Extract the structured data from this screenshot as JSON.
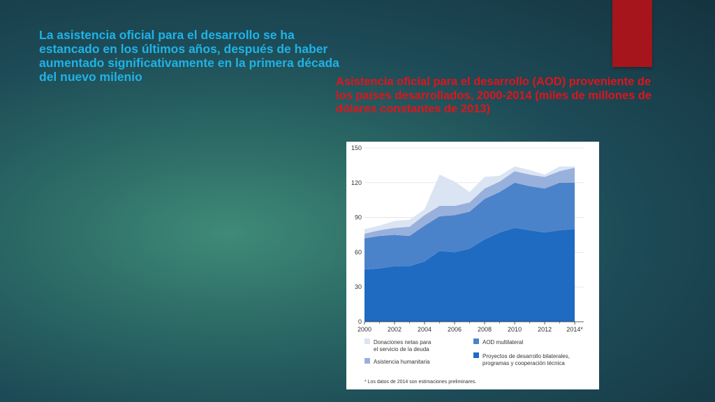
{
  "slide": {
    "title": "La asistencia oficial para el desarrollo se ha estancado en los últimos años, después de haber aumentado significativamente en la primera década del nuevo milenio",
    "chart_caption_lines": [
      "Asistencia oficial para el desarrollo (AOD) proveniente de",
      "los países desarrollados, 2000-2014 (miles de millones de dólares constantes de 2013)"
    ],
    "accent_color": "#a5151b",
    "title_color": "#1fb3e6",
    "caption_color": "#e0141c"
  },
  "chart_data": {
    "type": "area",
    "stacked": true,
    "x": [
      2000,
      2001,
      2002,
      2003,
      2004,
      2005,
      2006,
      2007,
      2008,
      2009,
      2010,
      2011,
      2012,
      2013,
      2014
    ],
    "x_tick_labels": [
      "2000",
      "2002",
      "2004",
      "2006",
      "2008",
      "2010",
      "2012",
      "2014*"
    ],
    "x_tick_values": [
      2000,
      2002,
      2004,
      2006,
      2008,
      2010,
      2012,
      2014
    ],
    "y_tick_labels": [
      "0",
      "30",
      "60",
      "90",
      "120",
      "150"
    ],
    "ylim": [
      0,
      150
    ],
    "xlim": [
      2000,
      2014.6
    ],
    "series": [
      {
        "name": "Proyectos de desarrollo bilaterales, programas y cooperación técnica",
        "color": "#1e6bc1",
        "values": [
          45,
          46,
          48,
          48,
          52,
          61,
          60,
          63,
          71,
          77,
          81,
          79,
          77,
          79,
          80
        ]
      },
      {
        "name": "AOD multilateral",
        "color": "#4b83cb",
        "values": [
          27,
          28,
          27,
          26,
          31,
          30,
          32,
          32,
          35,
          35,
          39,
          38,
          38,
          41,
          40
        ]
      },
      {
        "name": "Asistencia humanitaria",
        "color": "#98b0dc",
        "values": [
          4,
          5,
          6,
          8,
          9,
          9,
          8,
          8,
          9,
          9,
          10,
          10,
          10,
          10,
          13
        ]
      },
      {
        "name": "Donaciones netas para el servicio de la deuda",
        "color": "#dbe4f3",
        "values": [
          4,
          4,
          6,
          6,
          5,
          27,
          21,
          9,
          10,
          5,
          4,
          4,
          2,
          4,
          1
        ]
      }
    ],
    "legend": [
      {
        "lines": [
          "Donaciones netas para",
          "el servicio de la deuda"
        ],
        "color": "#dbe4f3"
      },
      {
        "lines": [
          "AOD multilateral"
        ],
        "color": "#4b83cb"
      },
      {
        "lines": [
          "Asistencia humanitaria"
        ],
        "color": "#98b0dc"
      },
      {
        "lines": [
          "Proyectos de desarrollo bilaterales,",
          "programas y cooperación técnica"
        ],
        "color": "#1e6bc1"
      }
    ],
    "legend_placement": "bottom",
    "footnote": "* Los datos de 2014 son estimaciones preliminares.",
    "grid": true
  }
}
